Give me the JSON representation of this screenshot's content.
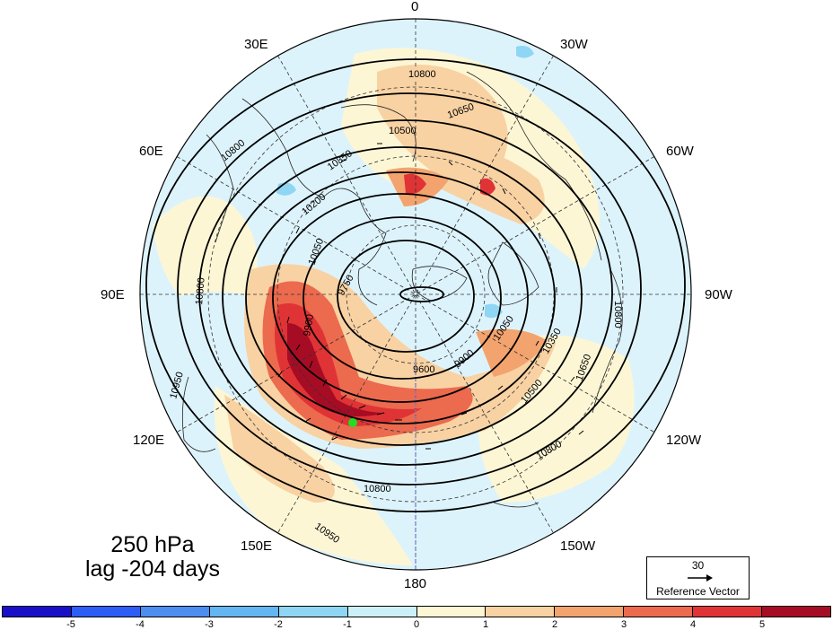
{
  "map": {
    "projection": "north polar stereographic",
    "longitude_labels": [
      "0",
      "30W",
      "60W",
      "90W",
      "120W",
      "150W",
      "180",
      "150E",
      "120E",
      "90E",
      "60E",
      "30E"
    ],
    "contour_labels": [
      "10800",
      "10650",
      "10500",
      "10350",
      "10200",
      "10050",
      "9750",
      "9900",
      "9600",
      "10950"
    ],
    "marker_color": "#22dd22"
  },
  "info": {
    "level": "250 hPa",
    "lag": "lag -204 days"
  },
  "reference_vector": {
    "magnitude": "30",
    "label": "Reference Vector"
  },
  "colorbar": {
    "colors": [
      "#1a0fc8",
      "#2c5ef5",
      "#4b8ef0",
      "#63b6f2",
      "#8fd6f4",
      "#cbf0f7",
      "#fdf6d5",
      "#f8d2a3",
      "#f3a36e",
      "#ec6a4e",
      "#e03335",
      "#a60c24"
    ],
    "labels": [
      "-5",
      "-4",
      "-3",
      "-2",
      "-1",
      "0",
      "1",
      "2",
      "3",
      "4",
      "5"
    ]
  },
  "colors": {
    "ocean_bg": "#ddf3fb",
    "contour": "#000000",
    "land_outline": "#222222"
  }
}
